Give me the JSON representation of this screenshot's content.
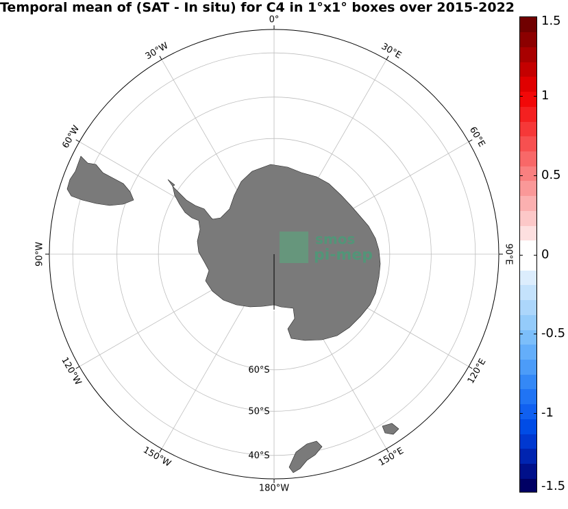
{
  "title": "Temporal mean of (SAT - In situ) for C4 in 1°x1° boxes over 2015-2022",
  "map": {
    "projection": "south-polar stereographic",
    "lon_labels": [
      {
        "text": "30°E",
        "angle": 30
      },
      {
        "text": "60°E",
        "angle": 60
      },
      {
        "text": "90°E",
        "angle": 90
      },
      {
        "text": "120°E",
        "angle": 120
      },
      {
        "text": "150°E",
        "angle": 150
      },
      {
        "text": "180°W",
        "angle": 180
      },
      {
        "text": "150°W",
        "angle": 210
      },
      {
        "text": "120°W",
        "angle": 240
      },
      {
        "text": "90°W",
        "angle": 270
      },
      {
        "text": "60°W",
        "angle": 300
      },
      {
        "text": "30°W",
        "angle": 330
      },
      {
        "text": "0°",
        "angle": 0
      }
    ],
    "lat_labels": [
      {
        "text": "60°S",
        "lat": -60
      },
      {
        "text": "50°S",
        "lat": -50
      },
      {
        "text": "40°S",
        "lat": -40
      }
    ],
    "lat_circles": [
      -60,
      -50,
      -40
    ],
    "outer_lat": -35,
    "inner_lat": -75,
    "land_color": "#7a7a7a",
    "grid_color": "#bdbdbd"
  },
  "watermark": {
    "line1": "smos",
    "line2": "pi-mep",
    "color": "#4c9a78"
  },
  "colorbar": {
    "min": -1.5,
    "max": 1.5,
    "ticks": [
      {
        "text": "1.5",
        "value": 1.5
      },
      {
        "text": "1",
        "value": 1
      },
      {
        "text": "0.5",
        "value": 0.5
      },
      {
        "text": "0",
        "value": 0
      },
      {
        "text": "-0.5",
        "value": -0.5
      },
      {
        "text": "-1",
        "value": -1
      },
      {
        "text": "-1.5",
        "value": -1.5
      }
    ],
    "colors": [
      "#000064",
      "#00108a",
      "#0024b0",
      "#0038d0",
      "#004ce6",
      "#1060f0",
      "#2074f4",
      "#3488f6",
      "#4c9cf8",
      "#64aefa",
      "#7cbefa",
      "#94cbfa",
      "#acd6fb",
      "#c4e2fc",
      "#dcedfd",
      "#ffffff",
      "#ffffff",
      "#fde0e0",
      "#fcc8c8",
      "#fbb0b0",
      "#fa9898",
      "#f98080",
      "#f86868",
      "#f75050",
      "#f63838",
      "#f42020",
      "#f20808",
      "#e00000",
      "#c40000",
      "#a80000",
      "#8c0000",
      "#700000"
    ]
  }
}
